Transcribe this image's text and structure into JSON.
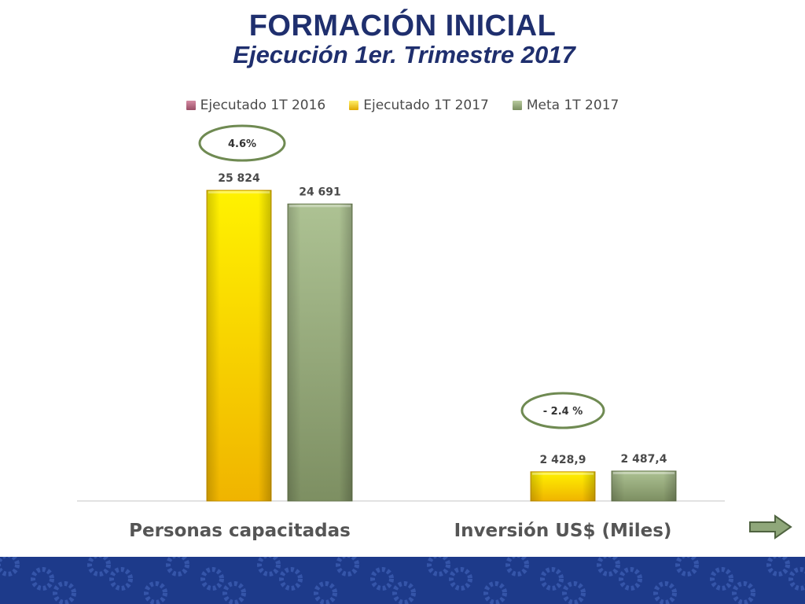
{
  "slide": {
    "title": "FORMACIÓN INICIAL",
    "subtitle": "Ejecución 1er. Trimestre 2017"
  },
  "colors": {
    "title": "#1f2f6e",
    "series_2016": "#b0667e",
    "series_2017": "#f2c400",
    "series_meta": "#93a877",
    "ellipse": "#6f8a52",
    "footer_blue": "#1d3a8a"
  },
  "chart_data": {
    "type": "bar",
    "categories": [
      "Personas capacitadas",
      "Inversión US$ (Miles)"
    ],
    "series": [
      {
        "name": "Ejecutado 1T 2016",
        "values": [
          null,
          null
        ],
        "labels": [
          "",
          ""
        ]
      },
      {
        "name": "Ejecutado 1T 2017",
        "values": [
          25824,
          2428.9
        ],
        "labels": [
          "25 824",
          "2 428,9"
        ]
      },
      {
        "name": "Meta 1T 2017",
        "values": [
          24691,
          2487.4
        ],
        "labels": [
          "24 691",
          "2 487,4"
        ]
      }
    ],
    "annotations": [
      "4.6%",
      "- 2.4 %"
    ],
    "ylim": [
      0,
      28000
    ],
    "legend_position": "top",
    "grid": false
  },
  "icons": {
    "next": "right-arrow-icon",
    "footer": "gear-pattern"
  }
}
